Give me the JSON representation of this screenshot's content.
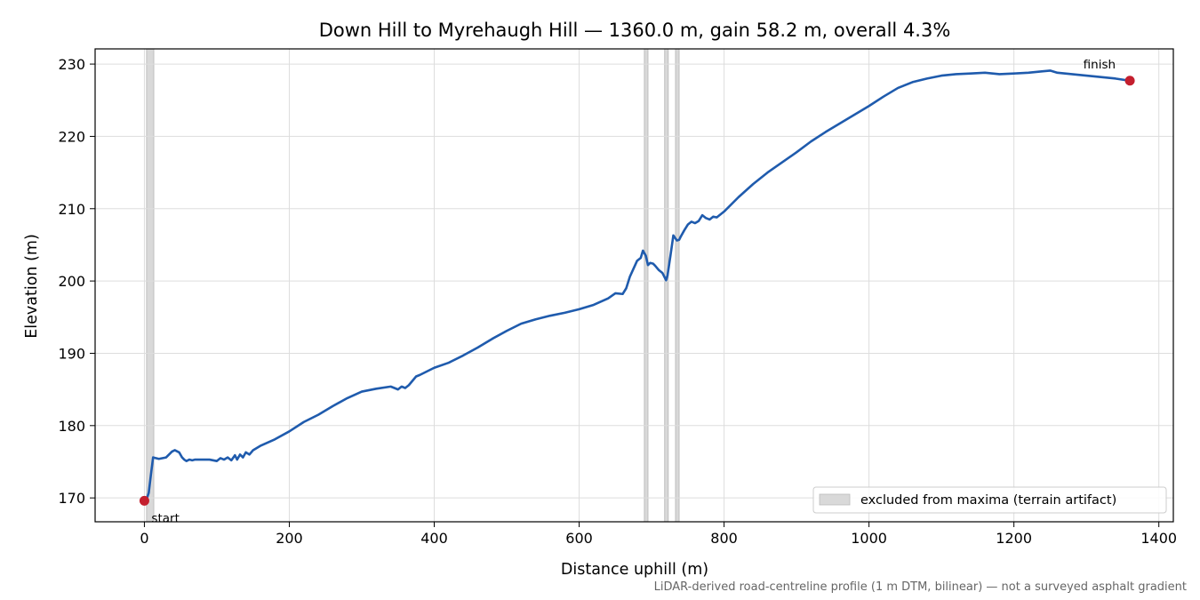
{
  "chart_data": {
    "type": "line",
    "title": "Down Hill to Myrehaugh Hill — 1360.0 m, gain 58.2 m, overall 4.3%",
    "xlabel": "Distance uphill (m)",
    "ylabel": "Elevation (m)",
    "xlim": [
      -68,
      1420
    ],
    "ylim": [
      166.7,
      232.1
    ],
    "x_ticks": [
      0,
      200,
      400,
      600,
      800,
      1000,
      1200,
      1400
    ],
    "y_ticks": [
      170,
      180,
      190,
      200,
      210,
      220,
      230
    ],
    "grid": true,
    "legend": {
      "placement": "lower-right",
      "entries": [
        {
          "label": "excluded from maxima (terrain artifact)",
          "color": "#d9d9d9"
        }
      ]
    },
    "excluded_bands": [
      [
        3,
        13
      ],
      [
        690,
        695
      ],
      [
        718,
        723
      ],
      [
        733,
        738
      ]
    ],
    "series": [
      {
        "color": "#1f5bad",
        "x": [
          0,
          3,
          6,
          9,
          12,
          20,
          30,
          38,
          42,
          48,
          52,
          55,
          58,
          62,
          66,
          70,
          80,
          90,
          100,
          105,
          110,
          115,
          120,
          125,
          128,
          132,
          136,
          140,
          145,
          150,
          160,
          180,
          200,
          220,
          240,
          260,
          280,
          300,
          320,
          340,
          350,
          355,
          360,
          365,
          370,
          375,
          380,
          400,
          420,
          440,
          460,
          480,
          500,
          520,
          540,
          560,
          580,
          600,
          620,
          640,
          650,
          660,
          665,
          670,
          675,
          680,
          685,
          688,
          692,
          695,
          698,
          702,
          705,
          710,
          715,
          720,
          722,
          726,
          730,
          735,
          738,
          740,
          745,
          750,
          755,
          760,
          765,
          770,
          775,
          780,
          785,
          790,
          800,
          820,
          840,
          860,
          880,
          900,
          920,
          940,
          960,
          980,
          1000,
          1020,
          1040,
          1060,
          1080,
          1100,
          1120,
          1140,
          1160,
          1180,
          1200,
          1220,
          1240,
          1250,
          1260,
          1280,
          1300,
          1320,
          1340,
          1360
        ],
        "y": [
          169.6,
          169.8,
          170.7,
          173.2,
          175.6,
          175.4,
          175.6,
          176.4,
          176.6,
          176.3,
          175.6,
          175.3,
          175.1,
          175.3,
          175.2,
          175.3,
          175.3,
          175.3,
          175.1,
          175.5,
          175.3,
          175.6,
          175.2,
          175.9,
          175.3,
          176.0,
          175.6,
          176.3,
          176.0,
          176.6,
          177.2,
          178.1,
          179.2,
          180.5,
          181.5,
          182.7,
          183.8,
          184.7,
          185.1,
          185.4,
          185.0,
          185.4,
          185.2,
          185.6,
          186.2,
          186.8,
          187.0,
          188.0,
          188.7,
          189.7,
          190.8,
          192.0,
          193.1,
          194.1,
          194.7,
          195.2,
          195.6,
          196.1,
          196.7,
          197.6,
          198.3,
          198.2,
          199.0,
          200.6,
          201.7,
          202.8,
          203.2,
          204.2,
          203.5,
          202.2,
          202.5,
          202.4,
          202.1,
          201.5,
          201.1,
          200.1,
          200.8,
          203.5,
          206.3,
          205.6,
          205.7,
          206.1,
          207.0,
          207.8,
          208.2,
          208.0,
          208.3,
          209.1,
          208.7,
          208.5,
          208.9,
          208.8,
          209.6,
          211.6,
          213.4,
          215.0,
          216.4,
          217.8,
          219.3,
          220.6,
          221.8,
          223.0,
          224.2,
          225.5,
          226.7,
          227.5,
          228.0,
          228.4,
          228.6,
          228.7,
          228.8,
          228.6,
          228.7,
          228.8,
          229.0,
          229.1,
          228.8,
          228.6,
          228.4,
          228.2,
          228.0,
          227.7
        ]
      }
    ],
    "points": [
      {
        "x": 0,
        "y": 169.6,
        "label": "start",
        "color": "#c41f2e"
      },
      {
        "x": 1360,
        "y": 227.7,
        "label": "finish",
        "color": "#c41f2e"
      }
    ],
    "footnote": "LiDAR-derived road-centreline profile (1 m DTM, bilinear) — not a surveyed asphalt gradient"
  }
}
